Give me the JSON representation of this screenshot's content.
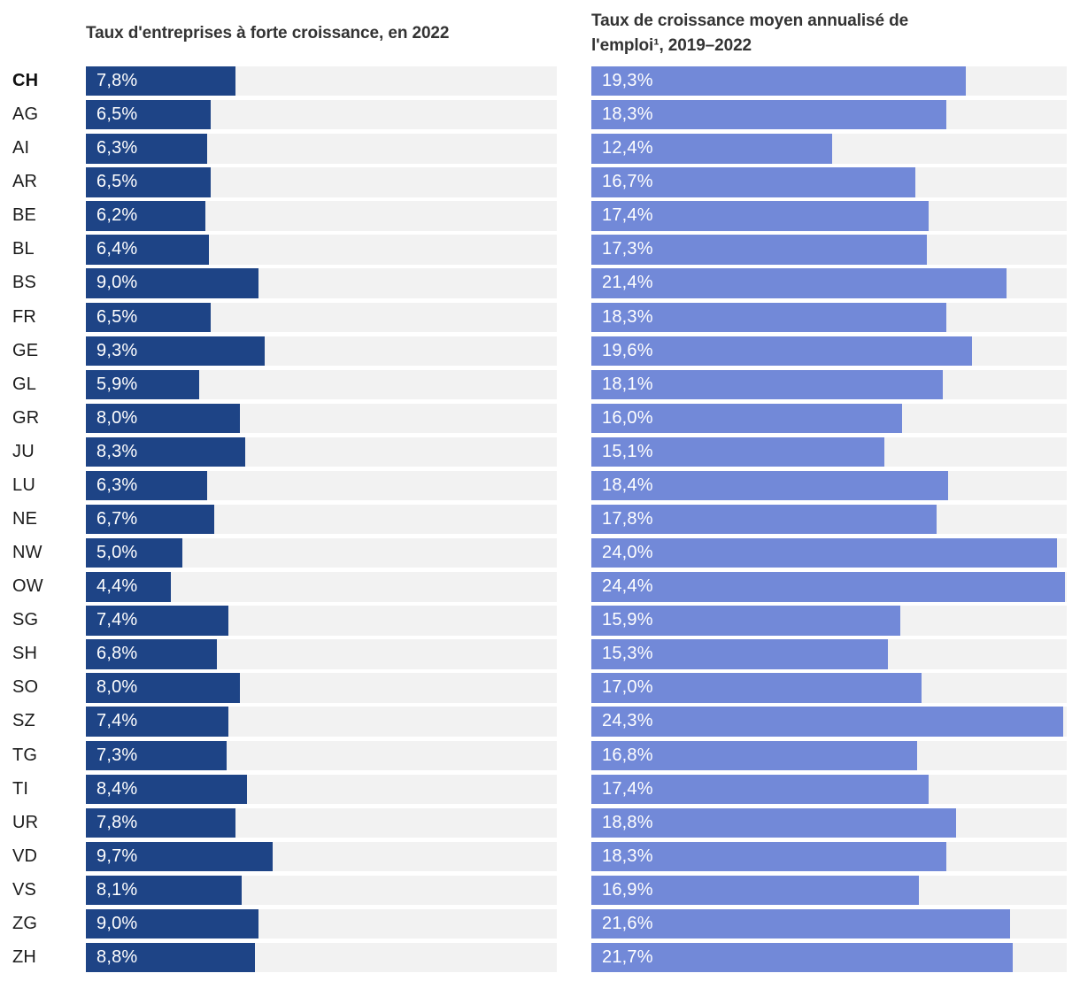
{
  "page": {
    "background": "#ffffff",
    "title_color": "#333333",
    "label_color": "#1c1c1c",
    "value_text_color": "#ffffff",
    "track_color": "#f2f2f2"
  },
  "header": {
    "left_title": "Taux d'entreprises à forte croissance, en 2022",
    "right_title_lines": [
      "Taux de croissance moyen annualisé de",
      "l'emploi¹, 2019–2022"
    ]
  },
  "chart_data": {
    "type": "bar",
    "orientation": "horizontal",
    "grid": false,
    "legend": "none",
    "xlim": [
      0,
      24.5
    ],
    "categories": [
      "CH",
      "AG",
      "AI",
      "AR",
      "BE",
      "BL",
      "BS",
      "FR",
      "GE",
      "GL",
      "GR",
      "JU",
      "LU",
      "NE",
      "NW",
      "OW",
      "SG",
      "SH",
      "SO",
      "SZ",
      "TG",
      "TI",
      "UR",
      "VD",
      "VS",
      "ZG",
      "ZH"
    ],
    "emphasized_category": "CH",
    "track_color": "#f2f2f2",
    "series": [
      {
        "name": "Taux d'entreprises à forte croissance, en 2022",
        "color": "#1e4486",
        "values": [
          7.8,
          6.5,
          6.3,
          6.5,
          6.2,
          6.4,
          9.0,
          6.5,
          9.3,
          5.9,
          8.0,
          8.3,
          6.3,
          6.7,
          5.0,
          4.4,
          7.4,
          6.8,
          8.0,
          7.4,
          7.3,
          8.4,
          7.8,
          9.7,
          8.1,
          9.0,
          8.8
        ],
        "labels": [
          "7,8%",
          "6,5%",
          "6,3%",
          "6,5%",
          "6,2%",
          "6,4%",
          "9,0%",
          "6,5%",
          "9,3%",
          "5,9%",
          "8,0%",
          "8,3%",
          "6,3%",
          "6,7%",
          "5,0%",
          "4,4%",
          "7,4%",
          "6,8%",
          "8,0%",
          "7,4%",
          "7,3%",
          "8,4%",
          "7,8%",
          "9,7%",
          "8,1%",
          "9,0%",
          "8,8%"
        ]
      },
      {
        "name": "Taux de croissance moyen annualisé de l'emploi¹, 2019–2022",
        "color": "#7289d8",
        "values": [
          19.3,
          18.3,
          12.4,
          16.7,
          17.4,
          17.3,
          21.4,
          18.3,
          19.6,
          18.1,
          16.0,
          15.1,
          18.4,
          17.8,
          24.0,
          24.4,
          15.9,
          15.3,
          17.0,
          24.3,
          16.8,
          17.4,
          18.8,
          18.3,
          16.9,
          21.6,
          21.7
        ],
        "labels": [
          "19,3%",
          "18,3%",
          "12,4%",
          "16,7%",
          "17,4%",
          "17,3%",
          "21,4%",
          "18,3%",
          "19,6%",
          "18,1%",
          "16,0%",
          "15,1%",
          "18,4%",
          "17,8%",
          "24,0%",
          "24,4%",
          "15,9%",
          "15,3%",
          "17,0%",
          "24,3%",
          "16,8%",
          "17,4%",
          "18,8%",
          "18,3%",
          "16,9%",
          "21,6%",
          "21,7%"
        ]
      }
    ]
  }
}
